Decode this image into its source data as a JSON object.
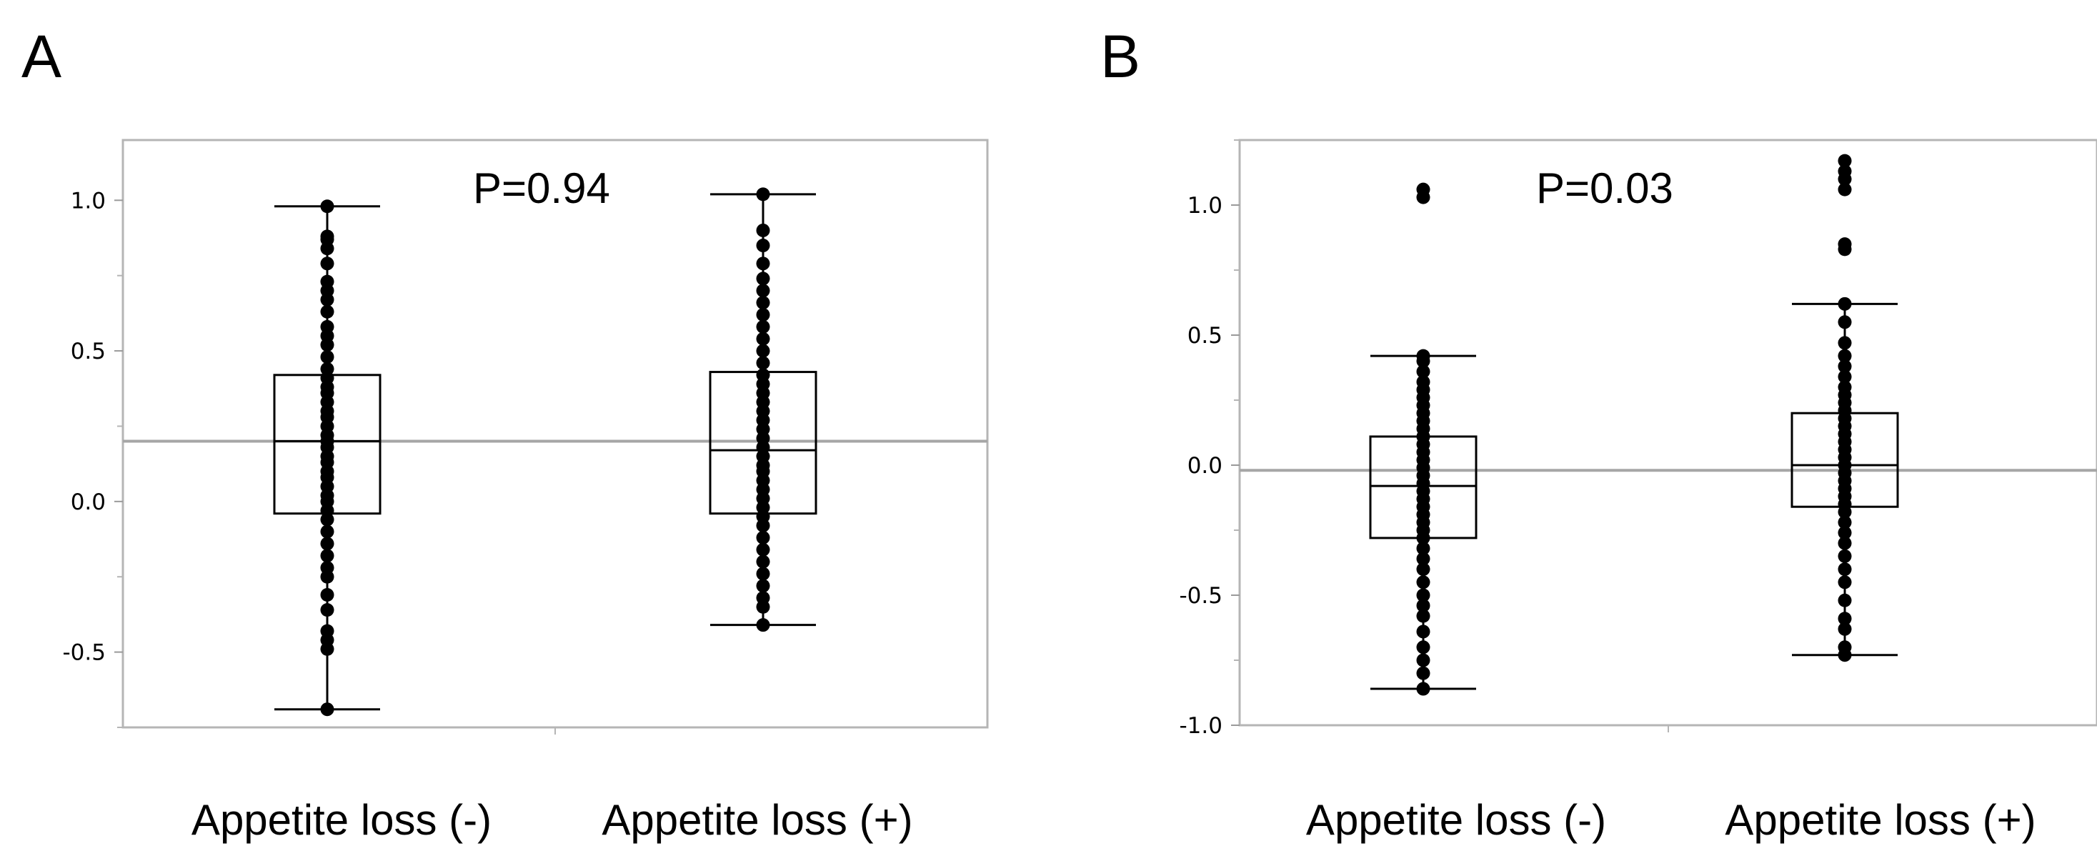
{
  "chart_data": [
    {
      "panel": "A",
      "type": "box",
      "annotation": "P=0.94",
      "xlabel": "",
      "ylabel": "",
      "categories": [
        "Appetite loss (-)",
        "Appetite loss (+)"
      ],
      "ylim": [
        -0.75,
        1.2
      ],
      "yticks": [
        -0.5,
        0.0,
        0.5,
        1.0
      ],
      "ytick_labels": [
        "-0.5",
        "0.0",
        "0.5",
        "1.0"
      ],
      "reference_line": 0.2,
      "boxes": [
        {
          "whisker_low": -0.69,
          "q1": -0.04,
          "median": 0.2,
          "q3": 0.42,
          "whisker_high": 0.98
        },
        {
          "whisker_low": -0.41,
          "q1": -0.04,
          "median": 0.17,
          "q3": 0.43,
          "whisker_high": 1.02
        }
      ],
      "points": [
        [
          -0.69,
          -0.49,
          -0.46,
          -0.43,
          -0.36,
          -0.31,
          -0.25,
          -0.22,
          -0.18,
          -0.14,
          -0.1,
          -0.06,
          -0.03,
          0.0,
          0.02,
          0.05,
          0.08,
          0.1,
          0.13,
          0.15,
          0.18,
          0.2,
          0.22,
          0.25,
          0.28,
          0.3,
          0.33,
          0.36,
          0.38,
          0.41,
          0.44,
          0.48,
          0.52,
          0.55,
          0.58,
          0.63,
          0.67,
          0.7,
          0.73,
          0.79,
          0.84,
          0.87,
          0.88,
          0.98
        ],
        [
          -0.41,
          -0.35,
          -0.32,
          -0.28,
          -0.24,
          -0.2,
          -0.16,
          -0.12,
          -0.08,
          -0.05,
          -0.02,
          0.01,
          0.04,
          0.07,
          0.1,
          0.12,
          0.15,
          0.18,
          0.21,
          0.24,
          0.27,
          0.3,
          0.33,
          0.36,
          0.39,
          0.42,
          0.46,
          0.5,
          0.54,
          0.58,
          0.62,
          0.66,
          0.7,
          0.74,
          0.79,
          0.85,
          0.9,
          1.02
        ]
      ]
    },
    {
      "panel": "B",
      "type": "box",
      "annotation": "P=0.03",
      "xlabel": "",
      "ylabel": "",
      "categories": [
        "Appetite loss (-)",
        "Appetite loss (+)"
      ],
      "ylim": [
        -1.0,
        1.25
      ],
      "yticks": [
        -1.0,
        -0.5,
        0.0,
        0.5,
        1.0
      ],
      "ytick_labels": [
        "-1.0",
        "-0.5",
        "0.0",
        "0.5",
        "1.0"
      ],
      "reference_line": -0.02,
      "boxes": [
        {
          "whisker_low": -0.86,
          "q1": -0.28,
          "median": -0.08,
          "q3": 0.11,
          "whisker_high": 0.42
        },
        {
          "whisker_low": -0.73,
          "q1": -0.16,
          "median": 0.0,
          "q3": 0.2,
          "whisker_high": 0.62
        }
      ],
      "points": [
        [
          -0.86,
          -0.8,
          -0.75,
          -0.7,
          -0.64,
          -0.58,
          -0.54,
          -0.5,
          -0.45,
          -0.4,
          -0.36,
          -0.32,
          -0.28,
          -0.25,
          -0.22,
          -0.19,
          -0.16,
          -0.13,
          -0.1,
          -0.07,
          -0.04,
          -0.01,
          0.02,
          0.05,
          0.08,
          0.11,
          0.14,
          0.17,
          0.2,
          0.23,
          0.26,
          0.29,
          0.32,
          0.36,
          0.4,
          0.42,
          1.03,
          1.06
        ],
        [
          -0.73,
          -0.7,
          -0.63,
          -0.59,
          -0.52,
          -0.45,
          -0.4,
          -0.35,
          -0.3,
          -0.26,
          -0.22,
          -0.18,
          -0.15,
          -0.12,
          -0.09,
          -0.06,
          -0.03,
          0.0,
          0.03,
          0.06,
          0.09,
          0.12,
          0.15,
          0.18,
          0.21,
          0.24,
          0.27,
          0.3,
          0.34,
          0.38,
          0.42,
          0.47,
          0.55,
          0.62,
          0.83,
          0.85,
          1.06,
          1.1,
          1.13,
          1.17
        ]
      ]
    }
  ]
}
